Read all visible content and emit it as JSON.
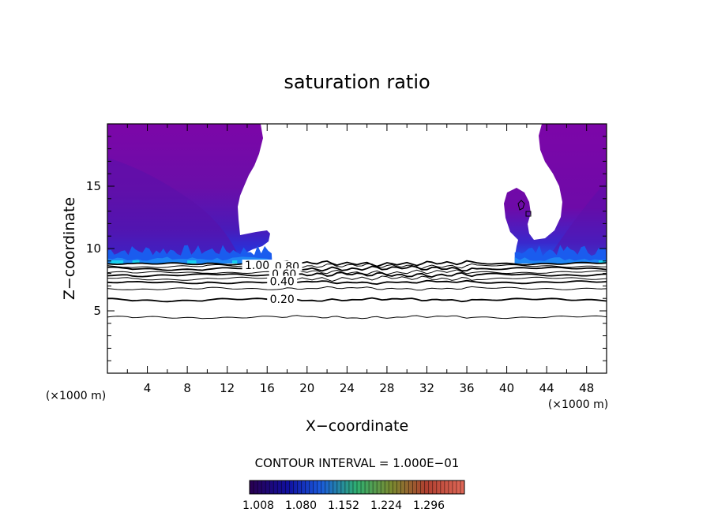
{
  "chart_data": {
    "type": "contour",
    "title": "saturation ratio",
    "xlabel": "X−coordinate",
    "ylabel": "Z−coordinate",
    "x_unit_left": "(×1000 m)",
    "x_unit_right": "(×1000 m)",
    "xlim": [
      0,
      50
    ],
    "ylim": [
      0,
      20
    ],
    "xticks": [
      4,
      8,
      12,
      16,
      20,
      24,
      28,
      32,
      36,
      40,
      44,
      48
    ],
    "yticks": [
      5,
      10,
      15
    ],
    "contour_interval_text": "CONTOUR INTERVAL = 1.000E−01",
    "contour_labels": [
      {
        "text": "1.00",
        "x": 15.0,
        "z": 8.6
      },
      {
        "text": "0.80",
        "x": 18.0,
        "z": 8.5
      },
      {
        "text": "0.60",
        "x": 17.7,
        "z": 7.9
      },
      {
        "text": "0.40",
        "x": 17.5,
        "z": 7.3
      },
      {
        "text": "0.20",
        "x": 17.5,
        "z": 5.9
      }
    ],
    "contour_levels": [
      {
        "level": 0.1,
        "z": 4.5
      },
      {
        "level": 0.2,
        "z": 5.9
      },
      {
        "level": 0.3,
        "z": 6.8
      },
      {
        "level": 0.4,
        "z": 7.3
      },
      {
        "level": 0.5,
        "z": 7.6
      },
      {
        "level": 0.6,
        "z": 7.9
      },
      {
        "level": 0.7,
        "z": 8.1
      },
      {
        "level": 0.8,
        "z": 8.4
      },
      {
        "level": 0.9,
        "z": 8.6
      },
      {
        "level": 1.0,
        "z": 8.8
      }
    ],
    "colorbar": {
      "min": 1.008,
      "max": 1.296,
      "tick_labels": [
        "1.008",
        "1.080",
        "1.152",
        "1.224",
        "1.296"
      ]
    },
    "colors": {
      "cloud_top": "#7b06a8",
      "cloud_mid": "#5b0ea8",
      "cloud_deep": "#2f24c8",
      "cloud_base": "#1a63ee",
      "cloud_highlight": "#19c8ee"
    }
  }
}
